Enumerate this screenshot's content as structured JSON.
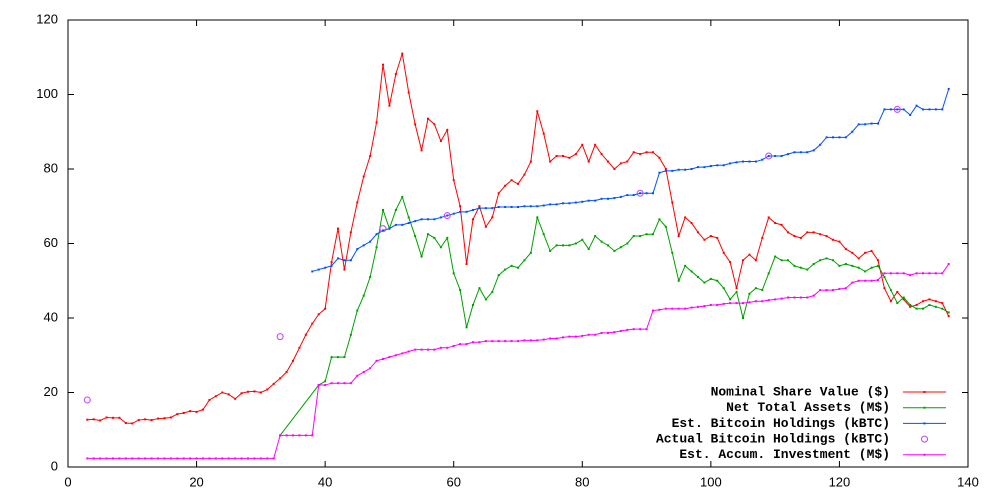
{
  "chart_data": {
    "type": "line",
    "xlim": [
      0,
      140
    ],
    "xticks": [
      0,
      20,
      40,
      60,
      80,
      100,
      120,
      140
    ],
    "ylim": [
      0,
      120
    ],
    "yticks": [
      0,
      20,
      40,
      60,
      80,
      100,
      120
    ],
    "legend": "bottom-right",
    "series": [
      {
        "name": "Nominal Share Value ($)",
        "color": "#ff0000",
        "style": "linespoints",
        "x": [
          3,
          4,
          5,
          6,
          7,
          8,
          9,
          10,
          11,
          12,
          13,
          14,
          15,
          16,
          17,
          18,
          19,
          20,
          21,
          22,
          23,
          24,
          25,
          26,
          27,
          28,
          29,
          30,
          31,
          32,
          33,
          34,
          35,
          36,
          37,
          38,
          39,
          40,
          41,
          42,
          43,
          44,
          45,
          46,
          47,
          48,
          49,
          50,
          51,
          52,
          53,
          54,
          55,
          56,
          57,
          58,
          59,
          60,
          61,
          62,
          63,
          64,
          65,
          66,
          67,
          68,
          69,
          70,
          71,
          72,
          73,
          74,
          75,
          76,
          77,
          78,
          79,
          80,
          81,
          82,
          83,
          84,
          85,
          86,
          87,
          88,
          89,
          90,
          91,
          92,
          93,
          94,
          95,
          96,
          97,
          98,
          99,
          100,
          101,
          102,
          103,
          104,
          105,
          106,
          107,
          108,
          109,
          110,
          111,
          112,
          113,
          114,
          115,
          116,
          117,
          118,
          119,
          120,
          121,
          122,
          123,
          124,
          125,
          126,
          127,
          128,
          129,
          130,
          131,
          132,
          133,
          134,
          135,
          136,
          137
        ],
        "values": [
          12.7,
          12.8,
          12.5,
          13.3,
          13.2,
          13.2,
          11.8,
          11.7,
          12.6,
          12.8,
          12.6,
          13.0,
          13.1,
          13.3,
          14.2,
          14.5,
          15.0,
          14.8,
          15.4,
          18.0,
          19.0,
          20.0,
          19.5,
          18.3,
          19.8,
          20.2,
          20.3,
          20.0,
          20.8,
          22.3,
          23.8,
          25.5,
          28.5,
          32.0,
          35.5,
          38.5,
          41.0,
          42.5,
          55.0,
          64.0,
          53.0,
          63.0,
          71.0,
          78.0,
          83.5,
          92.5,
          108,
          97,
          105.5,
          111,
          100.5,
          92,
          85,
          93.5,
          92,
          87.5,
          90.5,
          77,
          70,
          54.5,
          66.5,
          70,
          64.5,
          67,
          73.5,
          75.5,
          77,
          76,
          78.5,
          82,
          95.5,
          89.5,
          82,
          83.5,
          83.5,
          83,
          84,
          86.5,
          82,
          86.5,
          84,
          82,
          80,
          81.5,
          82,
          84.5,
          84,
          84.5,
          84.5,
          83,
          80,
          71,
          62,
          67,
          65.5,
          63,
          61,
          62,
          61.5,
          57.5,
          55,
          48,
          55.5,
          57,
          55.5,
          61.5,
          67,
          65.5,
          65,
          63,
          62,
          61.5,
          63,
          63,
          62.5,
          62,
          61,
          60.5,
          58.5,
          57.5,
          56,
          57.5,
          58,
          55.5,
          48,
          44.5,
          47,
          45,
          43,
          43.5,
          44.5,
          45,
          44.5,
          44,
          40.5
        ]
      },
      {
        "name": "Net Total Assets (M$)",
        "color": "#00a000",
        "style": "linespoints",
        "x": [
          33,
          39,
          40,
          41,
          42,
          43,
          44,
          45,
          46,
          47,
          48,
          49,
          50,
          51,
          52,
          53,
          54,
          55,
          56,
          57,
          58,
          59,
          60,
          61,
          62,
          63,
          64,
          65,
          66,
          67,
          68,
          69,
          70,
          71,
          72,
          73,
          74,
          75,
          76,
          77,
          78,
          79,
          80,
          81,
          82,
          83,
          84,
          85,
          86,
          87,
          88,
          89,
          90,
          91,
          92,
          93,
          94,
          95,
          96,
          97,
          98,
          99,
          100,
          101,
          102,
          103,
          104,
          105,
          106,
          107,
          108,
          109,
          110,
          111,
          112,
          113,
          114,
          115,
          116,
          117,
          118,
          119,
          120,
          121,
          122,
          123,
          124,
          125,
          126,
          127,
          128,
          129,
          130,
          131,
          132,
          133,
          134,
          135,
          136,
          137
        ],
        "values": [
          8.5,
          22,
          23,
          29.5,
          29.5,
          29.5,
          35.5,
          42,
          46,
          51,
          59,
          69,
          64,
          69,
          72.5,
          67,
          62,
          56.5,
          62.5,
          61.5,
          59,
          61.5,
          52,
          47.5,
          37.5,
          43.5,
          48,
          45,
          47,
          51.5,
          53,
          54,
          53.5,
          55.5,
          57.5,
          67,
          62.5,
          58,
          59.5,
          59.5,
          59.5,
          60,
          61,
          58.5,
          62,
          60.5,
          59.5,
          58,
          59,
          60,
          62,
          62,
          62.5,
          62.5,
          66.5,
          64.5,
          57.5,
          50,
          54,
          52.5,
          51,
          49.5,
          50.5,
          50,
          48,
          45,
          47,
          40,
          46.5,
          48,
          47.5,
          52,
          56.5,
          55.5,
          55.5,
          54,
          53.5,
          53,
          54.5,
          55.5,
          56,
          55.5,
          54,
          54.5,
          54,
          53.5,
          52.5,
          53.5,
          54,
          51,
          47.5,
          44,
          45.5,
          43.5,
          42.5,
          42.5,
          43.5,
          43,
          42.5,
          41.5
        ]
      },
      {
        "name": "Est. Bitcoin Holdings (kBTC)",
        "color": "#0050ff",
        "style": "linespoints",
        "x": [
          38,
          39,
          40,
          41,
          42,
          43,
          44,
          45,
          46,
          47,
          48,
          49,
          50,
          51,
          52,
          53,
          54,
          55,
          56,
          57,
          58,
          59,
          60,
          61,
          62,
          63,
          64,
          65,
          66,
          67,
          68,
          69,
          70,
          71,
          72,
          73,
          74,
          75,
          76,
          77,
          78,
          79,
          80,
          81,
          82,
          83,
          84,
          85,
          86,
          87,
          88,
          89,
          90,
          91,
          92,
          93,
          94,
          95,
          96,
          97,
          98,
          99,
          100,
          101,
          102,
          103,
          104,
          105,
          106,
          107,
          108,
          109,
          110,
          111,
          112,
          113,
          114,
          115,
          116,
          117,
          118,
          119,
          120,
          121,
          122,
          123,
          124,
          125,
          126,
          127,
          128,
          129,
          130,
          131,
          132,
          133,
          134,
          135,
          136,
          137
        ],
        "values": [
          52.5,
          53,
          53.5,
          54,
          56,
          55.5,
          55.5,
          58.5,
          59.5,
          60.5,
          62.5,
          63.5,
          64,
          65,
          65,
          65.5,
          66,
          66.5,
          66.5,
          66.5,
          67,
          67.5,
          68,
          68.5,
          68.5,
          69,
          69.5,
          69.5,
          69.5,
          69.8,
          69.8,
          69.8,
          69.8,
          70,
          70,
          70,
          70.2,
          70.5,
          70.5,
          70.8,
          70.8,
          71,
          71.2,
          71.5,
          71.5,
          72,
          72,
          72.2,
          72.5,
          73,
          73,
          73.5,
          73.5,
          73.5,
          79,
          79.5,
          79.5,
          79.8,
          79.8,
          80,
          80.5,
          80.5,
          80.8,
          81,
          81,
          81.5,
          81.8,
          82,
          82,
          82,
          82.5,
          83.5,
          83.5,
          83.5,
          84,
          84.5,
          84.5,
          84.5,
          85,
          86.5,
          88.5,
          88.5,
          88.5,
          88.5,
          90,
          92,
          92,
          92.2,
          92.2,
          96,
          96,
          96,
          96,
          94.5,
          97,
          96,
          96,
          96,
          96,
          101.5
        ]
      },
      {
        "name": "Actual Bitcoin Holdings (kBTC)",
        "color": "#c040ff",
        "style": "points",
        "x": [
          3,
          33,
          49,
          59,
          89,
          109,
          129
        ],
        "values": [
          18,
          35,
          64,
          67.5,
          73.5,
          83.5,
          96
        ]
      },
      {
        "name": "Est. Accum. Investment (M$)",
        "color": "#ff00ff",
        "style": "linespoints",
        "x": [
          3,
          4,
          5,
          6,
          7,
          8,
          9,
          10,
          11,
          12,
          13,
          14,
          15,
          16,
          17,
          18,
          19,
          20,
          21,
          22,
          23,
          24,
          25,
          26,
          27,
          28,
          29,
          30,
          31,
          32,
          33,
          34,
          35,
          36,
          37,
          38,
          39,
          40,
          41,
          42,
          43,
          44,
          45,
          46,
          47,
          48,
          49,
          50,
          51,
          52,
          53,
          54,
          55,
          56,
          57,
          58,
          59,
          60,
          61,
          62,
          63,
          64,
          65,
          66,
          67,
          68,
          69,
          70,
          71,
          72,
          73,
          74,
          75,
          76,
          77,
          78,
          79,
          80,
          81,
          82,
          83,
          84,
          85,
          86,
          87,
          88,
          89,
          90,
          91,
          92,
          93,
          94,
          95,
          96,
          97,
          98,
          99,
          100,
          101,
          102,
          103,
          104,
          105,
          106,
          107,
          108,
          109,
          110,
          111,
          112,
          113,
          114,
          115,
          116,
          117,
          118,
          119,
          120,
          121,
          122,
          123,
          124,
          125,
          126,
          127,
          128,
          129,
          130,
          131,
          132,
          133,
          134,
          135,
          136,
          137
        ],
        "values": [
          2.3,
          2.3,
          2.3,
          2.3,
          2.3,
          2.3,
          2.3,
          2.3,
          2.3,
          2.3,
          2.3,
          2.3,
          2.3,
          2.3,
          2.3,
          2.3,
          2.3,
          2.3,
          2.3,
          2.3,
          2.3,
          2.3,
          2.3,
          2.3,
          2.3,
          2.3,
          2.3,
          2.3,
          2.3,
          2.3,
          8.5,
          8.5,
          8.5,
          8.5,
          8.5,
          8.5,
          22,
          22,
          22.5,
          22.5,
          22.5,
          22.5,
          24.5,
          25.5,
          26.5,
          28.5,
          29,
          29.5,
          30,
          30.5,
          31,
          31.5,
          31.5,
          31.5,
          31.5,
          32,
          32,
          32.5,
          33,
          33,
          33.5,
          33.5,
          33.8,
          33.8,
          33.8,
          33.8,
          33.8,
          33.8,
          34,
          34,
          34,
          34.2,
          34.5,
          34.5,
          34.8,
          35,
          35,
          35.2,
          35.5,
          35.5,
          36,
          36,
          36.2,
          36.5,
          36.8,
          37,
          37,
          37,
          42,
          42.2,
          42.5,
          42.5,
          42.5,
          42.5,
          42.8,
          43,
          43.2,
          43.5,
          43.5,
          43.8,
          44,
          44,
          44,
          44.2,
          44.5,
          44.5,
          44.8,
          45,
          45.2,
          45.5,
          45.5,
          45.5,
          45.5,
          46,
          47.5,
          47.5,
          47.5,
          47.8,
          48,
          49.5,
          50,
          50,
          50,
          50.2,
          52,
          52,
          52,
          52,
          51.5,
          52,
          52,
          52,
          52,
          52,
          54.5
        ]
      }
    ]
  }
}
